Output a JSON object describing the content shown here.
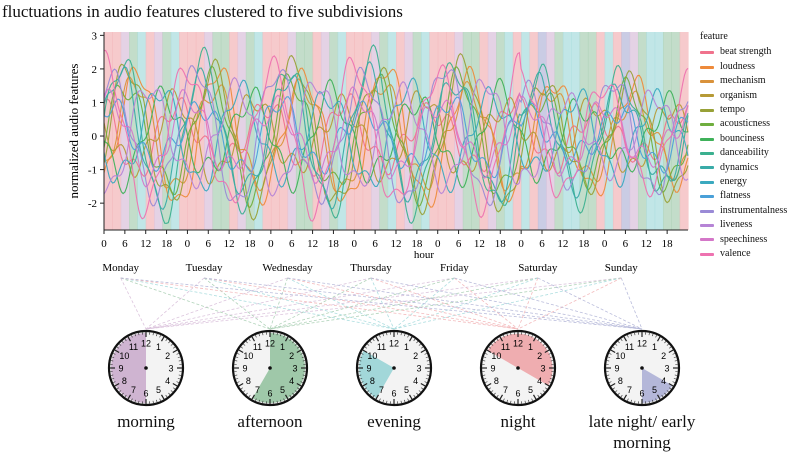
{
  "title": "fluctuations in audio features clustered to five subdivisions",
  "chart_data": {
    "type": "line",
    "xlabel": "hour",
    "ylabel": "normalized audio features",
    "ylim": [
      -2.8,
      3.1
    ],
    "yticks": [
      -2,
      -1,
      0,
      1,
      2,
      3
    ],
    "xticks": [
      0,
      6,
      12,
      18
    ],
    "days": [
      "Monday",
      "Tuesday",
      "Wednesday",
      "Thursday",
      "Friday",
      "Saturday",
      "Sunday"
    ],
    "legend_title": "feature",
    "series": [
      {
        "name": "beat strength",
        "color": "#f0728c"
      },
      {
        "name": "loudness",
        "color": "#ee8a3b"
      },
      {
        "name": "mechanism",
        "color": "#d9923a"
      },
      {
        "name": "organism",
        "color": "#b69a36"
      },
      {
        "name": "tempo",
        "color": "#98a137"
      },
      {
        "name": "acousticness",
        "color": "#6fae3e"
      },
      {
        "name": "bounciness",
        "color": "#3fb15a"
      },
      {
        "name": "danceability",
        "color": "#3bb08f"
      },
      {
        "name": "dynamics",
        "color": "#39aba8"
      },
      {
        "name": "energy",
        "color": "#3aa9bf"
      },
      {
        "name": "flatness",
        "color": "#4aa0d8"
      },
      {
        "name": "instrumentalness",
        "color": "#9a8ad6"
      },
      {
        "name": "liveness",
        "color": "#b684d6"
      },
      {
        "name": "speechiness",
        "color": "#d477c8"
      },
      {
        "name": "valence",
        "color": "#ee72b0"
      }
    ],
    "subdivisions": [
      {
        "name": "morning",
        "color": "#d9bfda"
      },
      {
        "name": "afternoon",
        "color": "#a9cfb3"
      },
      {
        "name": "evening",
        "color": "#a6dbdd"
      },
      {
        "name": "night",
        "color": "#f2b4b6"
      },
      {
        "name": "late night/ early morning",
        "color": "#b3b6d8"
      }
    ],
    "band_schedule": [
      [
        "night",
        "night",
        "morning",
        "afternoon",
        "evening",
        "night",
        "morning",
        "afternoon",
        "evening",
        "night"
      ],
      [
        "night",
        "night",
        "morning",
        "afternoon",
        "afternoon",
        "night",
        "morning",
        "afternoon",
        "evening",
        "night"
      ],
      [
        "night",
        "night",
        "morning",
        "afternoon",
        "afternoon",
        "night",
        "morning",
        "afternoon",
        "evening",
        "night"
      ],
      [
        "night",
        "night",
        "morning",
        "afternoon",
        "evening",
        "night",
        "morning",
        "afternoon",
        "evening",
        "night"
      ],
      [
        "night",
        "night",
        "morning",
        "afternoon",
        "afternoon",
        "night",
        "morning",
        "afternoon",
        "evening",
        "night"
      ],
      [
        "evening",
        "night",
        "late night/ early morning",
        "morning",
        "afternoon",
        "evening",
        "evening",
        "afternoon",
        "afternoon",
        "night"
      ],
      [
        "evening",
        "night",
        "late night/ early morning",
        "morning",
        "afternoon",
        "evening",
        "evening",
        "afternoon",
        "afternoon",
        "night"
      ]
    ]
  },
  "clocks": [
    {
      "label": "morning",
      "color": "#c8a8ca",
      "from_hour": 6,
      "to_hour": 12,
      "numbers": [
        "12",
        "1",
        "2",
        "3",
        "4",
        "5",
        "6",
        "7",
        "8",
        "9",
        "10",
        "11"
      ]
    },
    {
      "label": "afternoon",
      "color": "#8fbf9b",
      "from_hour": 12,
      "to_hour": 19,
      "numbers": [
        "12",
        "1",
        "2",
        "3",
        "4",
        "5",
        "6",
        "7",
        "8",
        "9",
        "10",
        "11"
      ]
    },
    {
      "label": "evening",
      "color": "#93d1d3",
      "from_hour": 19,
      "to_hour": 22,
      "numbers": [
        "12",
        "1",
        "2",
        "3",
        "4",
        "5",
        "6",
        "7",
        "8",
        "9",
        "10",
        "11"
      ]
    },
    {
      "label": "night",
      "color": "#eda0a3",
      "from_hour": 22,
      "to_hour": 4,
      "numbers": [
        "12",
        "1",
        "2",
        "3",
        "4",
        "5",
        "6",
        "7",
        "8",
        "9",
        "10",
        "11"
      ]
    },
    {
      "label": "late night/ early morning",
      "color": "#a8abd3",
      "from_hour": 4,
      "to_hour": 6,
      "numbers": [
        "12",
        "1",
        "2",
        "3",
        "4",
        "5",
        "6",
        "7",
        "8",
        "9",
        "10",
        "11"
      ]
    }
  ]
}
